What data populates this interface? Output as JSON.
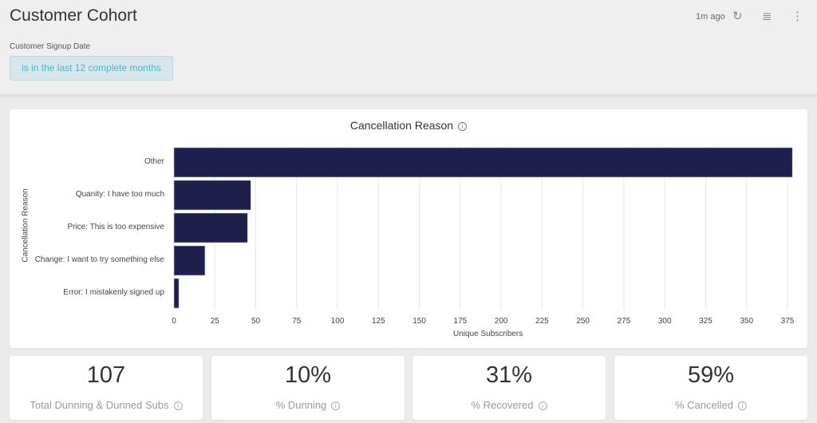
{
  "header": {
    "title": "Customer Cohort",
    "last_updated": "1m ago",
    "filter_label": "Customer Signup Date",
    "filter_value": "is in the last 12 complete months"
  },
  "chart_data": {
    "type": "bar",
    "orientation": "horizontal",
    "title": "Cancellation Reason",
    "xlabel": "Unique Subscribers",
    "ylabel": "Cancellation Reason",
    "categories": [
      "Other",
      "Quanity: I have too much",
      "Price: This is too expensive",
      "Change: I want to try something else",
      "Error: I mistakenly signed up"
    ],
    "values": [
      378,
      47,
      45,
      19,
      3
    ],
    "xlim": [
      0,
      378
    ],
    "xticks": [
      0,
      25,
      50,
      75,
      100,
      125,
      150,
      175,
      200,
      225,
      250,
      275,
      300,
      325,
      350,
      375
    ],
    "grid": true,
    "color": "#1e1f4b"
  },
  "stats": [
    {
      "value": "107",
      "label": "Total Dunning & Dunned Subs"
    },
    {
      "value": "10%",
      "label": "% Dunning"
    },
    {
      "value": "31%",
      "label": "% Recovered"
    },
    {
      "value": "59%",
      "label": "% Cancelled"
    }
  ]
}
